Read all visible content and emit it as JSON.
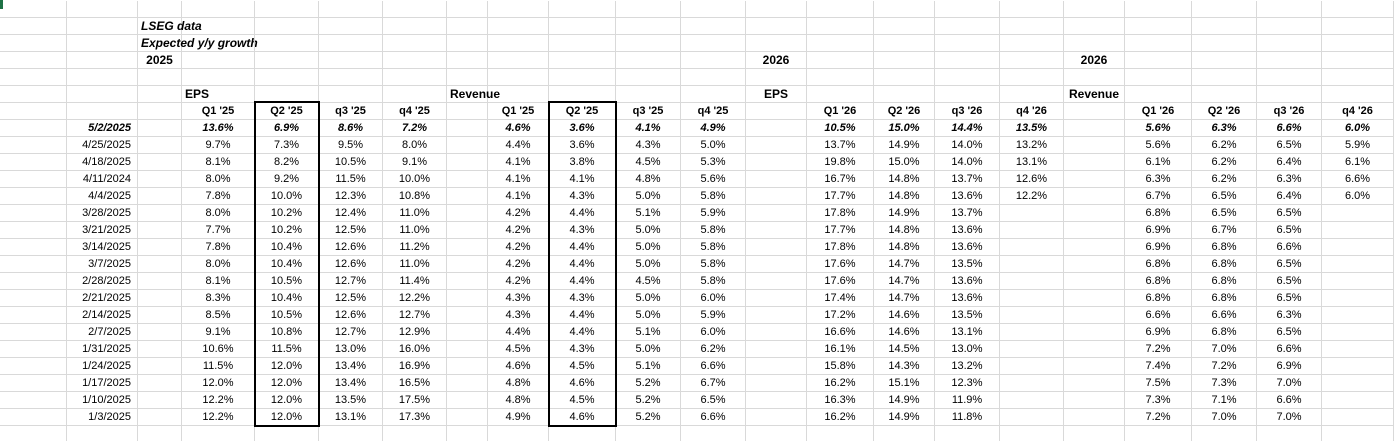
{
  "sheet": {
    "title_lines": [
      "LSEG data",
      "Expected y/y growth"
    ],
    "year_labels": [
      "2025",
      "2026",
      "2026"
    ],
    "section_labels": [
      "EPS",
      "Revenue",
      "EPS",
      "Revenue"
    ],
    "headers": [
      "Q1 '25",
      "Q2 '25",
      "q3 '25",
      "q4 '25",
      "Q1 '25",
      "Q2 '25",
      "q3 '25",
      "q4 '25",
      "Q1 '26",
      "Q2 '26",
      "q3 '26",
      "q4 '26",
      "Q1 '26",
      "Q2 '26",
      "q3 '26",
      "q4 '26"
    ],
    "rows": [
      {
        "date": "5/2/2025",
        "v": [
          "13.6%",
          "6.9%",
          "8.6%",
          "7.2%",
          "4.6%",
          "3.6%",
          "4.1%",
          "4.9%",
          "10.5%",
          "15.0%",
          "14.4%",
          "13.5%",
          "5.6%",
          "6.3%",
          "6.6%",
          "6.0%"
        ]
      },
      {
        "date": "4/25/2025",
        "v": [
          "9.7%",
          "7.3%",
          "9.5%",
          "8.0%",
          "4.4%",
          "3.6%",
          "4.3%",
          "5.0%",
          "13.7%",
          "14.9%",
          "14.0%",
          "13.2%",
          "5.6%",
          "6.2%",
          "6.5%",
          "5.9%"
        ]
      },
      {
        "date": "4/18/2025",
        "v": [
          "8.1%",
          "8.2%",
          "10.5%",
          "9.1%",
          "4.1%",
          "3.8%",
          "4.5%",
          "5.3%",
          "19.8%",
          "15.0%",
          "14.0%",
          "13.1%",
          "6.1%",
          "6.2%",
          "6.4%",
          "6.1%"
        ]
      },
      {
        "date": "4/11/2024",
        "v": [
          "8.0%",
          "9.2%",
          "11.5%",
          "10.0%",
          "4.1%",
          "4.1%",
          "4.8%",
          "5.6%",
          "16.7%",
          "14.8%",
          "13.7%",
          "12.6%",
          "6.3%",
          "6.2%",
          "6.3%",
          "6.6%"
        ]
      },
      {
        "date": "4/4/2025",
        "v": [
          "7.8%",
          "10.0%",
          "12.3%",
          "10.8%",
          "4.1%",
          "4.3%",
          "5.0%",
          "5.8%",
          "17.7%",
          "14.8%",
          "13.6%",
          "12.2%",
          "6.7%",
          "6.5%",
          "6.4%",
          "6.0%"
        ]
      },
      {
        "date": "3/28/2025",
        "v": [
          "8.0%",
          "10.2%",
          "12.4%",
          "11.0%",
          "4.2%",
          "4.4%",
          "5.1%",
          "5.9%",
          "17.8%",
          "14.9%",
          "13.7%",
          "",
          "6.8%",
          "6.5%",
          "6.5%",
          ""
        ]
      },
      {
        "date": "3/21/2025",
        "v": [
          "7.7%",
          "10.2%",
          "12.5%",
          "11.0%",
          "4.2%",
          "4.3%",
          "5.0%",
          "5.8%",
          "17.7%",
          "14.8%",
          "13.6%",
          "",
          "6.9%",
          "6.7%",
          "6.5%",
          ""
        ]
      },
      {
        "date": "3/14/2025",
        "v": [
          "7.8%",
          "10.4%",
          "12.6%",
          "11.2%",
          "4.2%",
          "4.4%",
          "5.0%",
          "5.8%",
          "17.8%",
          "14.8%",
          "13.6%",
          "",
          "6.9%",
          "6.8%",
          "6.6%",
          ""
        ]
      },
      {
        "date": "3/7/2025",
        "v": [
          "8.0%",
          "10.4%",
          "12.6%",
          "11.0%",
          "4.2%",
          "4.4%",
          "5.0%",
          "5.8%",
          "17.6%",
          "14.7%",
          "13.5%",
          "",
          "6.8%",
          "6.8%",
          "6.5%",
          ""
        ]
      },
      {
        "date": "2/28/2025",
        "v": [
          "8.1%",
          "10.5%",
          "12.7%",
          "11.4%",
          "4.2%",
          "4.4%",
          "4.5%",
          "5.8%",
          "17.6%",
          "14.7%",
          "13.6%",
          "",
          "6.8%",
          "6.8%",
          "6.5%",
          ""
        ]
      },
      {
        "date": "2/21/2025",
        "v": [
          "8.3%",
          "10.4%",
          "12.5%",
          "12.2%",
          "4.3%",
          "4.3%",
          "5.0%",
          "6.0%",
          "17.4%",
          "14.7%",
          "13.6%",
          "",
          "6.8%",
          "6.8%",
          "6.5%",
          ""
        ]
      },
      {
        "date": "2/14/2025",
        "v": [
          "8.5%",
          "10.5%",
          "12.6%",
          "12.7%",
          "4.3%",
          "4.4%",
          "5.0%",
          "5.9%",
          "17.2%",
          "14.6%",
          "13.5%",
          "",
          "6.6%",
          "6.6%",
          "6.3%",
          ""
        ]
      },
      {
        "date": "2/7/2025",
        "v": [
          "9.1%",
          "10.8%",
          "12.7%",
          "12.9%",
          "4.4%",
          "4.4%",
          "5.1%",
          "6.0%",
          "16.6%",
          "14.6%",
          "13.1%",
          "",
          "6.9%",
          "6.8%",
          "6.5%",
          ""
        ]
      },
      {
        "date": "1/31/2025",
        "v": [
          "10.6%",
          "11.5%",
          "13.0%",
          "16.0%",
          "4.5%",
          "4.3%",
          "5.0%",
          "6.2%",
          "16.1%",
          "14.5%",
          "13.0%",
          "",
          "7.2%",
          "7.0%",
          "6.6%",
          ""
        ]
      },
      {
        "date": "1/24/2025",
        "v": [
          "11.5%",
          "12.0%",
          "13.4%",
          "16.9%",
          "4.6%",
          "4.5%",
          "5.1%",
          "6.6%",
          "15.8%",
          "14.3%",
          "13.2%",
          "",
          "7.4%",
          "7.2%",
          "6.9%",
          ""
        ]
      },
      {
        "date": "1/17/2025",
        "v": [
          "12.0%",
          "12.0%",
          "13.4%",
          "16.5%",
          "4.8%",
          "4.6%",
          "5.2%",
          "6.7%",
          "16.2%",
          "15.1%",
          "12.3%",
          "",
          "7.5%",
          "7.3%",
          "7.0%",
          ""
        ]
      },
      {
        "date": "1/10/2025",
        "v": [
          "12.2%",
          "12.0%",
          "13.5%",
          "17.5%",
          "4.8%",
          "4.5%",
          "5.2%",
          "6.5%",
          "16.3%",
          "14.9%",
          "11.9%",
          "",
          "7.3%",
          "7.1%",
          "6.6%",
          ""
        ]
      },
      {
        "date": "1/3/2025",
        "v": [
          "12.2%",
          "12.0%",
          "13.1%",
          "17.3%",
          "4.9%",
          "4.6%",
          "5.2%",
          "6.6%",
          "16.2%",
          "14.9%",
          "11.8%",
          "",
          "7.2%",
          "7.0%",
          "7.0%",
          ""
        ]
      }
    ]
  }
}
